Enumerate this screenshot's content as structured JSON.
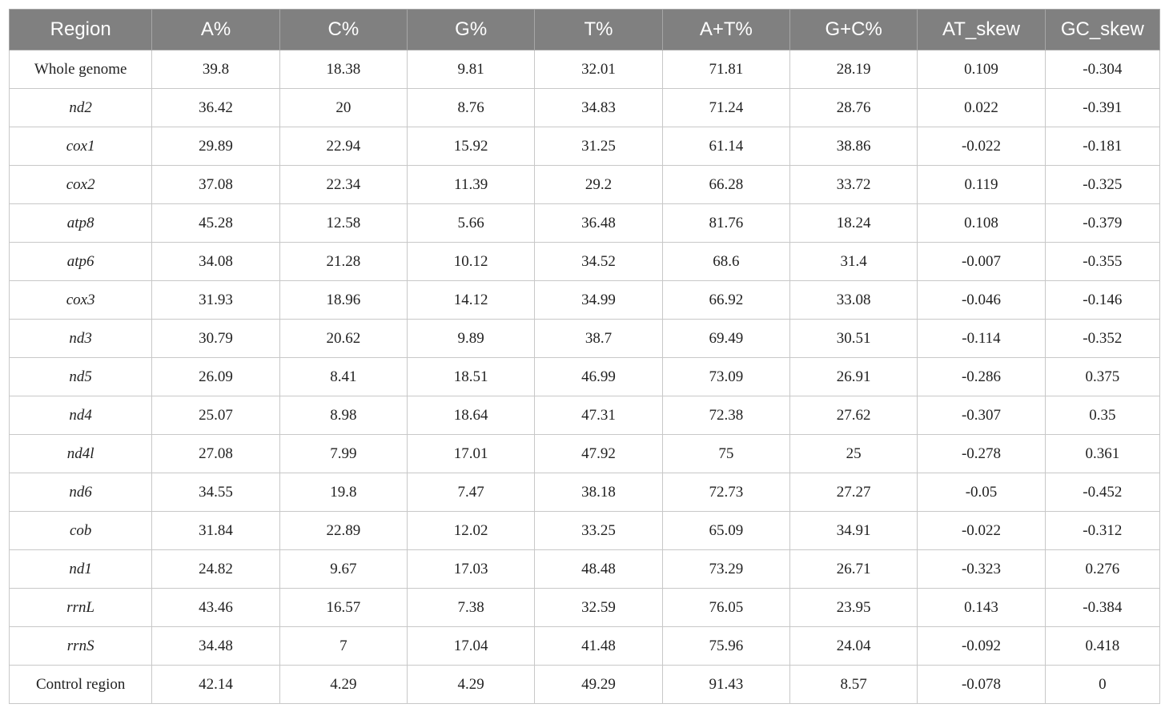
{
  "table": {
    "headers": [
      "Region",
      "A%",
      "C%",
      "G%",
      "T%",
      "A+T%",
      "G+C%",
      "AT_skew",
      "GC_skew"
    ],
    "rows": [
      {
        "region": "Whole genome",
        "italic": false,
        "values": [
          "39.8",
          "18.38",
          "9.81",
          "32.01",
          "71.81",
          "28.19",
          "0.109",
          "-0.304"
        ]
      },
      {
        "region": "nd2",
        "italic": true,
        "values": [
          "36.42",
          "20",
          "8.76",
          "34.83",
          "71.24",
          "28.76",
          "0.022",
          "-0.391"
        ]
      },
      {
        "region": "cox1",
        "italic": true,
        "values": [
          "29.89",
          "22.94",
          "15.92",
          "31.25",
          "61.14",
          "38.86",
          "-0.022",
          "-0.181"
        ]
      },
      {
        "region": "cox2",
        "italic": true,
        "values": [
          "37.08",
          "22.34",
          "11.39",
          "29.2",
          "66.28",
          "33.72",
          "0.119",
          "-0.325"
        ]
      },
      {
        "region": "atp8",
        "italic": true,
        "values": [
          "45.28",
          "12.58",
          "5.66",
          "36.48",
          "81.76",
          "18.24",
          "0.108",
          "-0.379"
        ]
      },
      {
        "region": "atp6",
        "italic": true,
        "values": [
          "34.08",
          "21.28",
          "10.12",
          "34.52",
          "68.6",
          "31.4",
          "-0.007",
          "-0.355"
        ]
      },
      {
        "region": "cox3",
        "italic": true,
        "values": [
          "31.93",
          "18.96",
          "14.12",
          "34.99",
          "66.92",
          "33.08",
          "-0.046",
          "-0.146"
        ]
      },
      {
        "region": "nd3",
        "italic": true,
        "values": [
          "30.79",
          "20.62",
          "9.89",
          "38.7",
          "69.49",
          "30.51",
          "-0.114",
          "-0.352"
        ]
      },
      {
        "region": "nd5",
        "italic": true,
        "values": [
          "26.09",
          "8.41",
          "18.51",
          "46.99",
          "73.09",
          "26.91",
          "-0.286",
          "0.375"
        ]
      },
      {
        "region": "nd4",
        "italic": true,
        "values": [
          "25.07",
          "8.98",
          "18.64",
          "47.31",
          "72.38",
          "27.62",
          "-0.307",
          "0.35"
        ]
      },
      {
        "region": "nd4l",
        "italic": true,
        "values": [
          "27.08",
          "7.99",
          "17.01",
          "47.92",
          "75",
          "25",
          "-0.278",
          "0.361"
        ]
      },
      {
        "region": "nd6",
        "italic": true,
        "values": [
          "34.55",
          "19.8",
          "7.47",
          "38.18",
          "72.73",
          "27.27",
          "-0.05",
          "-0.452"
        ]
      },
      {
        "region": "cob",
        "italic": true,
        "values": [
          "31.84",
          "22.89",
          "12.02",
          "33.25",
          "65.09",
          "34.91",
          "-0.022",
          "-0.312"
        ]
      },
      {
        "region": "nd1",
        "italic": true,
        "values": [
          "24.82",
          "9.67",
          "17.03",
          "48.48",
          "73.29",
          "26.71",
          "-0.323",
          "0.276"
        ]
      },
      {
        "region": "rrnL",
        "italic": true,
        "values": [
          "43.46",
          "16.57",
          "7.38",
          "32.59",
          "76.05",
          "23.95",
          "0.143",
          "-0.384"
        ]
      },
      {
        "region": "rrnS",
        "italic": true,
        "values": [
          "34.48",
          "7",
          "17.04",
          "41.48",
          "75.96",
          "24.04",
          "-0.092",
          "0.418"
        ]
      },
      {
        "region": "Control region",
        "italic": false,
        "values": [
          "42.14",
          "4.29",
          "4.29",
          "49.29",
          "91.43",
          "8.57",
          "-0.078",
          "0"
        ]
      }
    ]
  },
  "colors": {
    "header_bg": "#808080",
    "header_text": "#ffffff",
    "border": "#c8c8c8"
  }
}
